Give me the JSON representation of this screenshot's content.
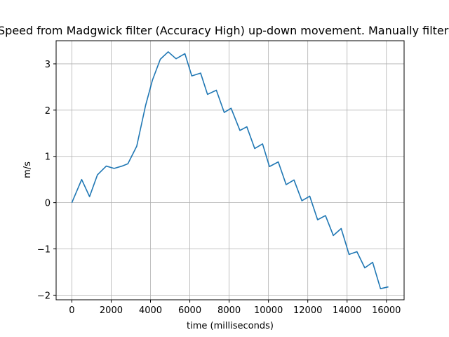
{
  "chart_data": {
    "type": "line",
    "title": "Speed from Madgwick filter (Accuracy High) up-down movement. Manually filtered",
    "xlabel": "time (milliseconds)",
    "ylabel": "m/s",
    "xlim": [
      -800,
      16900
    ],
    "ylim": [
      -2.1,
      3.5
    ],
    "xticks": [
      0,
      2000,
      4000,
      6000,
      8000,
      10000,
      12000,
      14000,
      16000
    ],
    "yticks": [
      -2,
      -1,
      0,
      1,
      2,
      3
    ],
    "ytick_labels": [
      "−2",
      "−1",
      "0",
      "1",
      "2",
      "3"
    ],
    "grid": true,
    "series": [
      {
        "color": "#1f77b4",
        "x": [
          0,
          500,
          900,
          1300,
          1750,
          2150,
          2550,
          2850,
          3300,
          3750,
          4100,
          4500,
          4900,
          5300,
          5750,
          6100,
          6550,
          6900,
          7350,
          7750,
          8100,
          8550,
          8900,
          9300,
          9700,
          10050,
          10500,
          10900,
          11300,
          11700,
          12100,
          12500,
          12900,
          13300,
          13700,
          14100,
          14500,
          14900,
          15300,
          15700,
          16100
        ],
        "y": [
          0.0,
          0.5,
          0.13,
          0.6,
          0.79,
          0.74,
          0.79,
          0.84,
          1.22,
          2.1,
          2.65,
          3.1,
          3.26,
          3.11,
          3.22,
          2.74,
          2.8,
          2.34,
          2.43,
          1.95,
          2.04,
          1.56,
          1.64,
          1.17,
          1.27,
          0.78,
          0.88,
          0.39,
          0.49,
          0.04,
          0.14,
          -0.37,
          -0.28,
          -0.71,
          -0.56,
          -1.12,
          -1.06,
          -1.41,
          -1.29,
          -1.86,
          -1.82
        ]
      }
    ]
  }
}
